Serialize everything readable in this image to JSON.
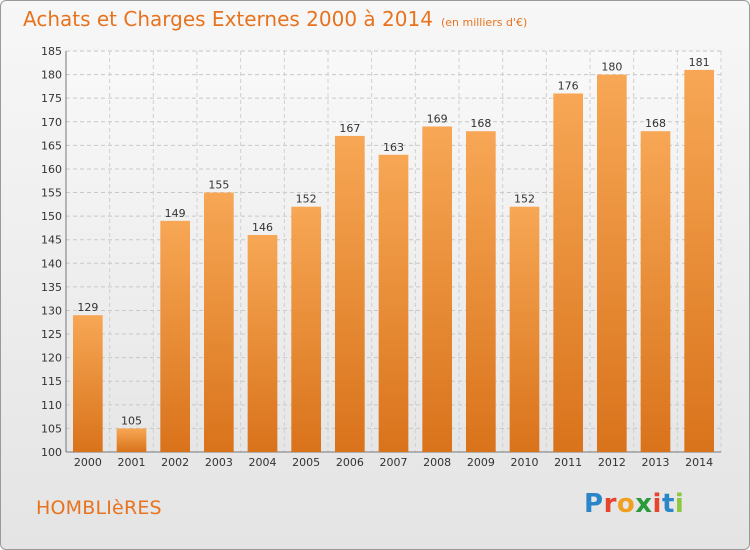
{
  "header": {
    "title": "Achats et Charges Externes 2000 à 2014",
    "unit": "(en milliers d'€)"
  },
  "commune": "HOMBLIèRES",
  "logo": {
    "letters": [
      {
        "ch": "P",
        "color": "#2a86c8"
      },
      {
        "ch": "r",
        "color": "#e5442d"
      },
      {
        "ch": "o",
        "color": "#f0a020"
      },
      {
        "ch": "x",
        "color": "#2a9a3a"
      },
      {
        "ch": "i",
        "color": "#e5442d"
      },
      {
        "ch": "t",
        "color": "#2a86c8"
      },
      {
        "ch": "i",
        "color": "#8dc63f"
      }
    ]
  },
  "colors": {
    "bar_top": "#f7a755",
    "bar_bottom": "#d9731b",
    "accent": "#e8731e"
  },
  "chart_data": {
    "type": "bar",
    "categories": [
      "2000",
      "2001",
      "2002",
      "2003",
      "2004",
      "2005",
      "2006",
      "2007",
      "2008",
      "2009",
      "2010",
      "2011",
      "2012",
      "2013",
      "2014"
    ],
    "values": [
      129,
      105,
      149,
      155,
      146,
      152,
      167,
      163,
      169,
      168,
      152,
      176,
      180,
      168,
      181
    ],
    "title": "Achats et Charges Externes 2000 à 2014",
    "subtitle": "(en milliers d'€)",
    "xlabel": "",
    "ylabel": "",
    "ylim": [
      100,
      185
    ],
    "yticks": [
      100,
      105,
      110,
      115,
      120,
      125,
      130,
      135,
      140,
      145,
      150,
      155,
      160,
      165,
      170,
      175,
      180,
      185
    ],
    "grid": true,
    "data_labels": true
  }
}
